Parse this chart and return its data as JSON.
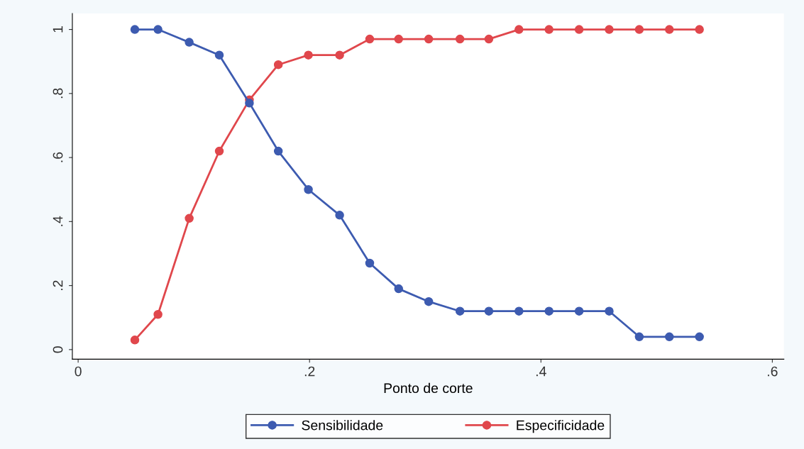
{
  "chart_data": {
    "type": "line",
    "xlabel": "Ponto de corte",
    "x": [
      0.049,
      0.069,
      0.096,
      0.122,
      0.148,
      0.173,
      0.199,
      0.226,
      0.252,
      0.277,
      0.303,
      0.33,
      0.355,
      0.381,
      0.407,
      0.433,
      0.459,
      0.485,
      0.511,
      0.537
    ],
    "series": [
      {
        "name": "Sensibilidade",
        "color": "#3d5bb0",
        "values": [
          1,
          1,
          0.96,
          0.92,
          0.77,
          0.62,
          0.5,
          0.42,
          0.27,
          0.19,
          0.15,
          0.12,
          0.12,
          0.12,
          0.12,
          0.12,
          0.12,
          0.04,
          0.04,
          0.04
        ]
      },
      {
        "name": "Especificidade",
        "color": "#e0474c",
        "values": [
          0.03,
          0.11,
          0.41,
          0.62,
          0.78,
          0.89,
          0.92,
          0.92,
          0.97,
          0.97,
          0.97,
          0.97,
          0.97,
          1,
          1,
          1,
          1,
          1,
          1,
          1
        ]
      }
    ],
    "xlim": [
      -0.005,
      0.61
    ],
    "ylim": [
      -0.03,
      1.05
    ],
    "xticks": [
      {
        "value": 0,
        "label": "0"
      },
      {
        "value": 0.2,
        "label": ".2"
      },
      {
        "value": 0.4,
        "label": ".4"
      },
      {
        "value": 0.6,
        "label": ".6"
      }
    ],
    "yticks": [
      {
        "value": 0,
        "label": "0"
      },
      {
        "value": 0.2,
        "label": ".2"
      },
      {
        "value": 0.4,
        "label": ".4"
      },
      {
        "value": 0.6,
        "label": ".6"
      },
      {
        "value": 0.8,
        "label": ".8"
      },
      {
        "value": 1,
        "label": "1"
      }
    ],
    "marker": "circle",
    "line_style": "solid",
    "legend": "bottom",
    "grid": false
  }
}
